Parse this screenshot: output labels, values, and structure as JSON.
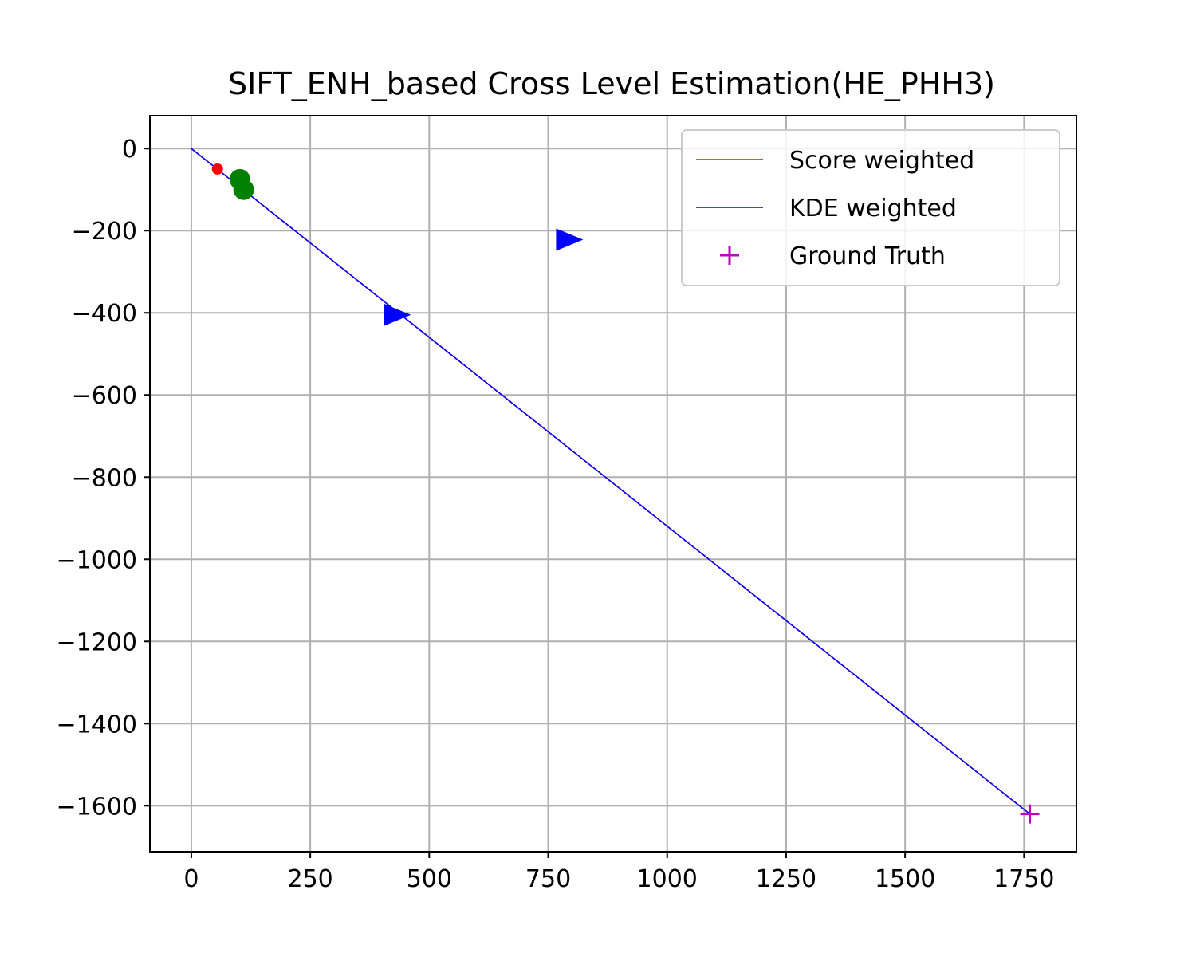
{
  "chart_data": {
    "type": "line",
    "title": "SIFT_ENH_based Cross Level Estimation(HE_PHH3)",
    "xlabel": "",
    "ylabel": "",
    "xlim": [
      -87,
      1860
    ],
    "ylim": [
      -1712,
      80
    ],
    "x_ticks": [
      0,
      250,
      500,
      750,
      1000,
      1250,
      1500,
      1750
    ],
    "y_ticks": [
      0,
      -200,
      -400,
      -600,
      -800,
      -1000,
      -1200,
      -1400,
      -1600
    ],
    "x_tick_labels": [
      "0",
      "250",
      "500",
      "750",
      "1000",
      "1250",
      "1500",
      "1750"
    ],
    "y_tick_labels": [
      "0",
      "−200",
      "−400",
      "−600",
      "−800",
      "−1000",
      "−1200",
      "−1400",
      "−1600"
    ],
    "grid": true,
    "legend_position": "top-right",
    "series": [
      {
        "name": "Score weighted",
        "kind": "line",
        "color": "#ff0000",
        "points": [
          [
            0,
            0
          ],
          [
            1762,
            -1620
          ]
        ]
      },
      {
        "name": "KDE weighted",
        "kind": "line",
        "color": "#0000ff",
        "points": [
          [
            0,
            0
          ],
          [
            1762,
            -1620
          ]
        ]
      },
      {
        "name": "Ground Truth",
        "kind": "marker",
        "marker": "plus",
        "color": "#bf00bf",
        "points": [
          [
            1762,
            -1620
          ]
        ]
      }
    ],
    "markers": [
      {
        "marker": "circle-small",
        "color": "#ff0000",
        "points": [
          [
            55,
            -50
          ]
        ]
      },
      {
        "marker": "circle",
        "color": "#008000",
        "points": [
          [
            102,
            -75
          ],
          [
            110,
            -100
          ]
        ]
      },
      {
        "marker": "triangle-right",
        "color": "#0000ff",
        "points": [
          [
            428,
            -405
          ],
          [
            790,
            -222
          ]
        ]
      }
    ]
  }
}
